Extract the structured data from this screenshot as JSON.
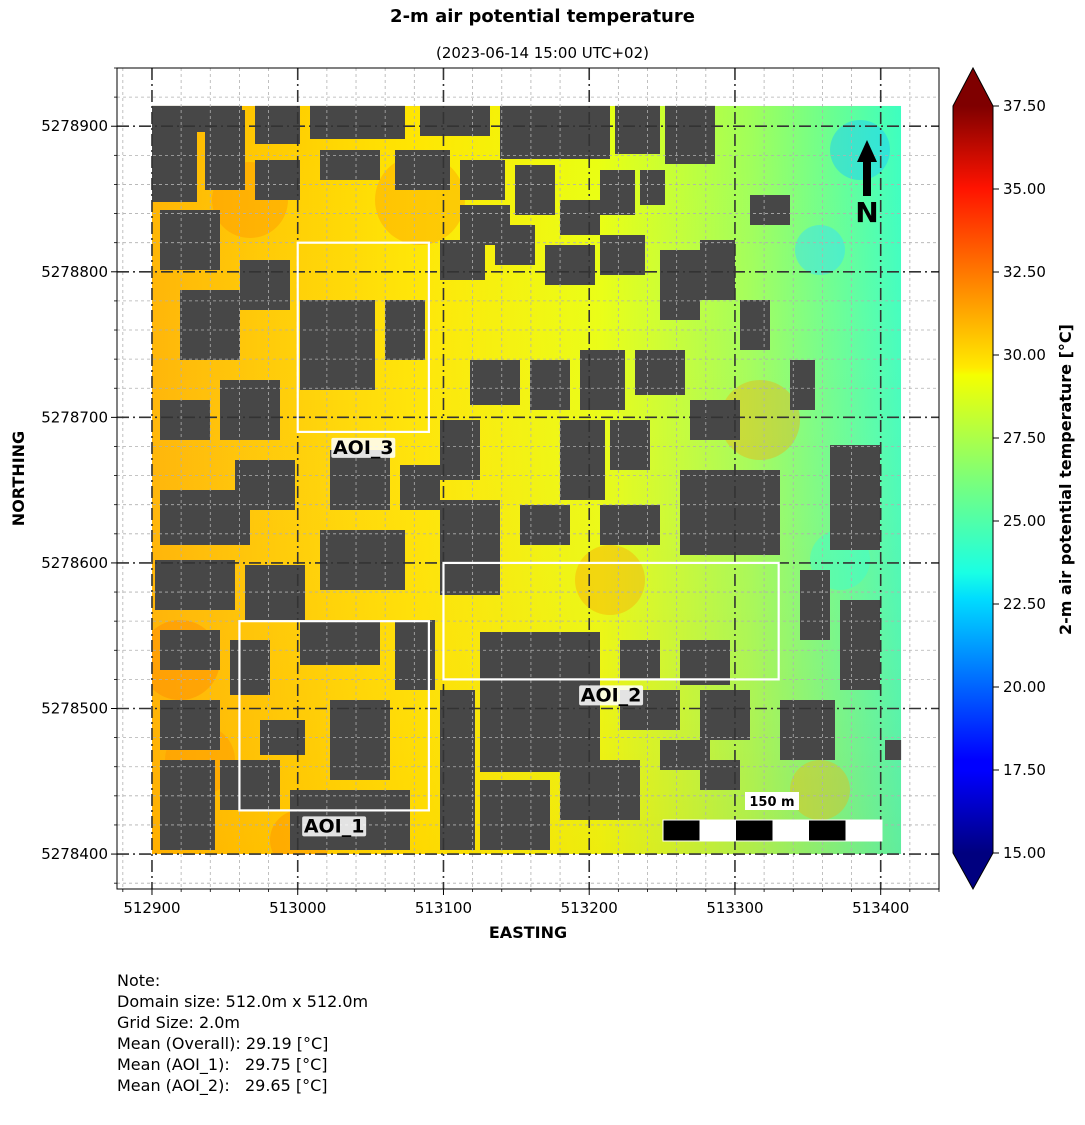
{
  "chart_data": {
    "type": "heatmap",
    "title": "2-m air potential temperature",
    "subtitle": "(2023-06-14 15:00 UTC+02)",
    "xlabel": "EASTING",
    "ylabel": "NORTHING",
    "xlim": [
      512876,
      513440
    ],
    "ylim": [
      5278376,
      5278940
    ],
    "domain": {
      "x": [
        512900,
        513414
      ],
      "y": [
        5278400,
        5278914
      ]
    },
    "xticks": [
      512900,
      513000,
      513100,
      513200,
      513300,
      513400
    ],
    "yticks": [
      5278400,
      5278500,
      5278600,
      5278700,
      5278800,
      5278900
    ],
    "xtick_labels": [
      "512900",
      "513000",
      "513100",
      "513200",
      "513300",
      "513400"
    ],
    "ytick_labels": [
      "5278400",
      "5278500",
      "5278600",
      "5278700",
      "5278800",
      "5278900"
    ],
    "grid": true,
    "colorbar": {
      "label": "2-m air potential temperature [°C]",
      "min": 15.0,
      "max": 37.5,
      "colormap": "jet",
      "extend": "both",
      "ticks": [
        15.0,
        17.5,
        20.0,
        22.5,
        25.0,
        27.5,
        30.0,
        32.5,
        35.0,
        37.5
      ],
      "tick_labels": [
        "15.00",
        "17.50",
        "20.00",
        "22.50",
        "25.00",
        "27.50",
        "30.00",
        "32.50",
        "35.00",
        "37.50"
      ]
    },
    "building_color": "#474747",
    "aois": [
      {
        "name": "AOI_1",
        "x": [
          512960,
          513090
        ],
        "y": [
          5278430,
          5278560
        ]
      },
      {
        "name": "AOI_2",
        "x": [
          513100,
          513330
        ],
        "y": [
          5278520,
          5278600
        ]
      },
      {
        "name": "AOI_3",
        "x": [
          513000,
          513090
        ],
        "y": [
          5278690,
          5278820
        ]
      }
    ],
    "north_arrow": "N",
    "scale_bar": {
      "label": "150 m",
      "length_m": 150,
      "segments": 6
    }
  },
  "note": {
    "heading": "Note:",
    "lines": [
      "Domain size: 512.0m x 512.0m",
      "Grid Size: 2.0m",
      "Mean (Overall): 29.19 [°C]",
      "Mean (AOI_1):   29.75 [°C]",
      "Mean (AOI_2):   29.65 [°C]"
    ]
  }
}
